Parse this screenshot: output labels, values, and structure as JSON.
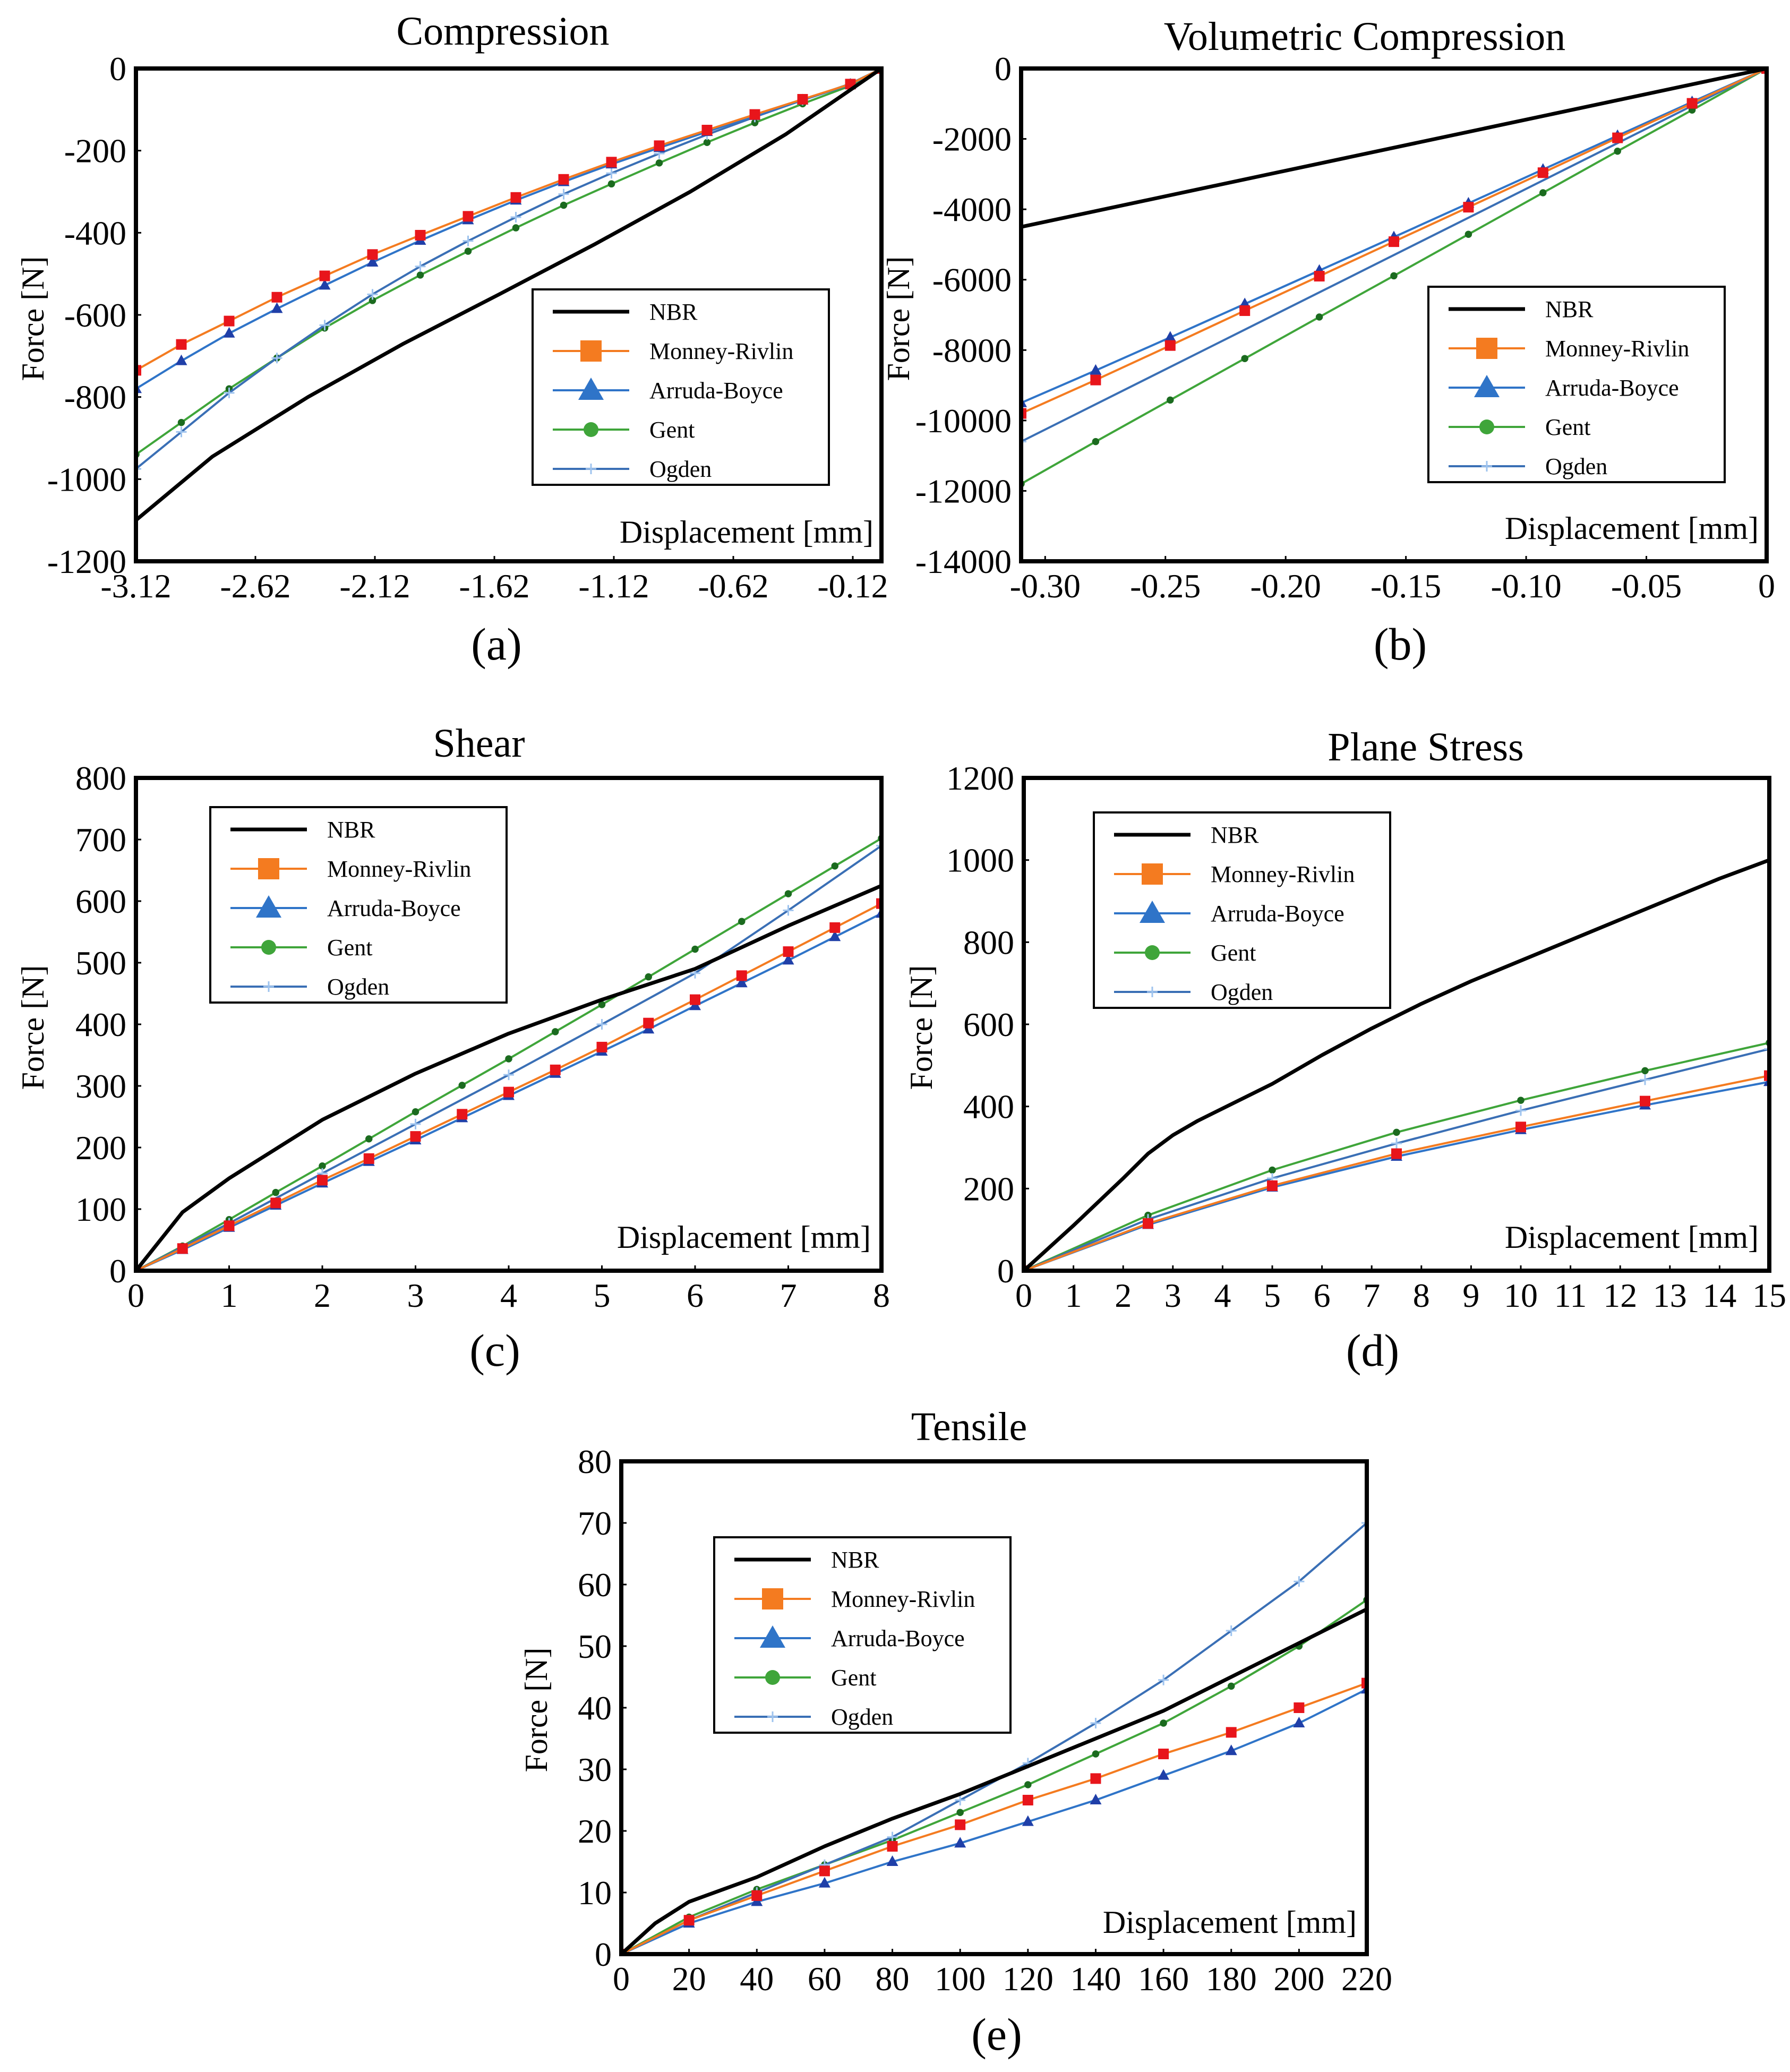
{
  "colors": {
    "NBR": "#000000",
    "Monney-Rivlin": "#f47b20",
    "Monney-Rivlin-marker": "#e8151b",
    "Arruda-Boyce": "#2f74c8",
    "Arruda-Boyce-marker": "#1f3fa8",
    "Gent": "#3fa53a",
    "Gent-marker": "#1b6b1f",
    "Ogden": "#3a6fb5"
  },
  "chart_data": [
    {
      "id": "a",
      "type": "line",
      "title": "Compression",
      "panel_label": "(a)",
      "xlabel": "Displacement [mm]",
      "ylabel": "Force [N]",
      "xlim": [
        -3.12,
        0
      ],
      "ylim": [
        -1200,
        0
      ],
      "xticks": [
        -3.12,
        -2.62,
        -2.12,
        -1.62,
        -1.12,
        -0.62,
        -0.12
      ],
      "xtick_labels": [
        "-3.12",
        "-2.62",
        "-2.12",
        "-1.62",
        "-1.12",
        "-0.62",
        "-0.12"
      ],
      "yticks": [
        0,
        -200,
        -400,
        -600,
        -800,
        -1000,
        -1200
      ],
      "ytick_labels": [
        "0",
        "-200",
        "-400",
        "-600",
        "-800",
        "-1000",
        "-1200"
      ],
      "grid": false,
      "legend": [
        "NBR",
        "Monney-Rivlin",
        "Arruda-Boyce",
        "Gent",
        "Ogden"
      ],
      "series": [
        {
          "name": "NBR",
          "x": [
            -3.12,
            -2.8,
            -2.4,
            -2.0,
            -1.6,
            -1.2,
            -0.8,
            -0.4,
            0
          ],
          "y": [
            -1100,
            -945,
            -800,
            -670,
            -550,
            -428,
            -300,
            -160,
            0
          ]
        },
        {
          "name": "Monney-Rivlin",
          "x": [
            -3.12,
            -2.93,
            -2.73,
            -2.53,
            -2.33,
            -2.13,
            -1.93,
            -1.73,
            -1.53,
            -1.33,
            -1.13,
            -0.93,
            -0.73,
            -0.53,
            -0.33,
            -0.13,
            0
          ],
          "y": [
            -735,
            -672,
            -615,
            -557,
            -505,
            -453,
            -406,
            -360,
            -314,
            -270,
            -228,
            -188,
            -150,
            -112,
            -75,
            -38,
            0
          ]
        },
        {
          "name": "Arruda-Boyce",
          "x": [
            -3.12,
            -2.93,
            -2.73,
            -2.53,
            -2.33,
            -2.13,
            -1.93,
            -1.73,
            -1.53,
            -1.33,
            -1.13,
            -0.93,
            -0.73,
            -0.53,
            -0.33,
            -0.13,
            0
          ],
          "y": [
            -780,
            -712,
            -645,
            -585,
            -528,
            -472,
            -419,
            -369,
            -321,
            -276,
            -233,
            -193,
            -154,
            -115,
            -77,
            -39,
            0
          ]
        },
        {
          "name": "Gent",
          "x": [
            -3.12,
            -2.93,
            -2.73,
            -2.53,
            -2.33,
            -2.13,
            -1.93,
            -1.73,
            -1.53,
            -1.33,
            -1.13,
            -0.93,
            -0.73,
            -0.53,
            -0.33,
            -0.13,
            0
          ],
          "y": [
            -940,
            -862,
            -780,
            -705,
            -632,
            -565,
            -503,
            -445,
            -388,
            -333,
            -281,
            -230,
            -180,
            -132,
            -86,
            -42,
            0
          ]
        },
        {
          "name": "Ogden",
          "x": [
            -3.12,
            -2.93,
            -2.73,
            -2.53,
            -2.33,
            -2.13,
            -1.93,
            -1.73,
            -1.53,
            -1.33,
            -1.13,
            -0.93,
            -0.73,
            -0.53,
            -0.33,
            -0.13,
            0
          ],
          "y": [
            -975,
            -885,
            -790,
            -705,
            -625,
            -550,
            -482,
            -420,
            -362,
            -306,
            -255,
            -207,
            -161,
            -118,
            -77,
            -37,
            0
          ]
        }
      ]
    },
    {
      "id": "b",
      "type": "line",
      "title": "Volumetric Compression",
      "panel_label": "(b)",
      "xlabel": "Displacement [mm]",
      "ylabel": "Force [N]",
      "xlim": [
        -0.31,
        0
      ],
      "ylim": [
        -14000,
        0
      ],
      "xticks": [
        -0.3,
        -0.25,
        -0.2,
        -0.15,
        -0.1,
        -0.05,
        0
      ],
      "xtick_labels": [
        "-0.30",
        "-0.25",
        "-0.20",
        "-0.15",
        "-0.10",
        "-0.05",
        "0"
      ],
      "yticks": [
        0,
        -2000,
        -4000,
        -6000,
        -8000,
        -10000,
        -12000,
        -14000
      ],
      "ytick_labels": [
        "0",
        "-2000",
        "-4000",
        "-6000",
        "-8000",
        "-10000",
        "-12000",
        "-14000"
      ],
      "grid": false,
      "legend": [
        "NBR",
        "Monney-Rivlin",
        "Arruda-Boyce",
        "Gent",
        "Ogden"
      ],
      "series": [
        {
          "name": "NBR",
          "x": [
            -0.31,
            0
          ],
          "y": [
            -4500,
            0
          ]
        },
        {
          "name": "Monney-Rivlin",
          "x": [
            -0.31,
            -0.279,
            -0.248,
            -0.217,
            -0.186,
            -0.155,
            -0.124,
            -0.093,
            -0.062,
            -0.031,
            0
          ],
          "y": [
            -9800,
            -8850,
            -7870,
            -6880,
            -5900,
            -4920,
            -3940,
            -2960,
            -1970,
            -990,
            0
          ]
        },
        {
          "name": "Arruda-Boyce",
          "x": [
            -0.31,
            -0.279,
            -0.248,
            -0.217,
            -0.186,
            -0.155,
            -0.124,
            -0.093,
            -0.062,
            -0.031,
            0
          ],
          "y": [
            -9500,
            -8580,
            -7640,
            -6690,
            -5740,
            -4790,
            -3830,
            -2870,
            -1910,
            -950,
            0
          ]
        },
        {
          "name": "Gent",
          "x": [
            -0.31,
            -0.279,
            -0.248,
            -0.217,
            -0.186,
            -0.155,
            -0.124,
            -0.093,
            -0.062,
            -0.031,
            0
          ],
          "y": [
            -11800,
            -10600,
            -9420,
            -8240,
            -7060,
            -5890,
            -4710,
            -3530,
            -2350,
            -1180,
            0
          ]
        },
        {
          "name": "Ogden",
          "x": [
            -0.31,
            0
          ],
          "y": [
            -10600,
            0
          ]
        }
      ]
    },
    {
      "id": "c",
      "type": "line",
      "title": "Shear",
      "panel_label": "(c)",
      "xlabel": "Displacement [mm]",
      "ylabel": "Force [N]",
      "xlim": [
        0,
        8
      ],
      "ylim": [
        0,
        800
      ],
      "xticks": [
        0,
        1,
        2,
        3,
        4,
        5,
        6,
        7,
        8
      ],
      "xtick_labels": [
        "0",
        "1",
        "2",
        "3",
        "4",
        "5",
        "6",
        "7",
        "8"
      ],
      "yticks": [
        0,
        100,
        200,
        300,
        400,
        500,
        600,
        700,
        800
      ],
      "ytick_labels": [
        "0",
        "100",
        "200",
        "300",
        "400",
        "500",
        "600",
        "700",
        "800"
      ],
      "grid": false,
      "legend": [
        "NBR",
        "Monney-Rivlin",
        "Arruda-Boyce",
        "Gent",
        "Ogden"
      ],
      "series": [
        {
          "name": "NBR",
          "x": [
            0,
            0.5,
            1,
            2,
            3,
            4,
            5,
            6,
            7,
            8
          ],
          "y": [
            0,
            95,
            150,
            245,
            320,
            385,
            440,
            490,
            560,
            625
          ]
        },
        {
          "name": "Monney-Rivlin",
          "x": [
            0,
            0.5,
            1,
            1.5,
            2,
            2.5,
            3,
            3.5,
            4,
            4.5,
            5,
            5.5,
            6,
            6.5,
            7,
            7.5,
            8
          ],
          "y": [
            0,
            36,
            73,
            110,
            147,
            182,
            218,
            254,
            290,
            326,
            363,
            402,
            440,
            479,
            518,
            557,
            596
          ]
        },
        {
          "name": "Arruda-Boyce",
          "x": [
            0,
            0.5,
            1,
            1.5,
            2,
            2.5,
            3,
            3.5,
            4,
            4.5,
            5,
            5.5,
            6,
            6.5,
            7,
            7.5,
            8
          ],
          "y": [
            0,
            34,
            70,
            106,
            142,
            177,
            212,
            248,
            284,
            320,
            356,
            392,
            430,
            467,
            504,
            542,
            580
          ]
        },
        {
          "name": "Gent",
          "x": [
            0,
            0.5,
            1,
            1.5,
            2,
            2.5,
            3,
            3.5,
            4,
            4.5,
            5,
            5.5,
            6,
            6.5,
            7,
            7.5,
            8
          ],
          "y": [
            0,
            40,
            83,
            127,
            170,
            214,
            258,
            301,
            344,
            388,
            432,
            477,
            522,
            567,
            612,
            657,
            702
          ]
        },
        {
          "name": "Ogden",
          "x": [
            0,
            1,
            2,
            3,
            4,
            5,
            6,
            7,
            8
          ],
          "y": [
            0,
            77,
            158,
            238,
            318,
            400,
            483,
            585,
            690
          ]
        }
      ]
    },
    {
      "id": "d",
      "type": "line",
      "title": "Plane Stress",
      "panel_label": "(d)",
      "xlabel": "Displacement [mm]",
      "ylabel": "Force [N]",
      "xlim": [
        0,
        15
      ],
      "ylim": [
        0,
        1200
      ],
      "xticks": [
        0,
        1,
        2,
        3,
        4,
        5,
        6,
        7,
        8,
        9,
        10,
        11,
        12,
        13,
        14,
        15
      ],
      "xtick_labels": [
        "0",
        "1",
        "2",
        "3",
        "4",
        "5",
        "6",
        "7",
        "8",
        "9",
        "10",
        "11",
        "12",
        "13",
        "14",
        "15"
      ],
      "yticks": [
        0,
        200,
        400,
        600,
        800,
        1000,
        1200
      ],
      "ytick_labels": [
        "0",
        "200",
        "400",
        "600",
        "800",
        "1000",
        "1200"
      ],
      "grid": false,
      "legend": [
        "NBR",
        "Monney-Rivlin",
        "Arruda-Boyce",
        "Gent",
        "Ogden"
      ],
      "series": [
        {
          "name": "NBR",
          "x": [
            0,
            1,
            2,
            2.5,
            3,
            3.5,
            4,
            5,
            6,
            7,
            8,
            9,
            10,
            11,
            12,
            13,
            14,
            15
          ],
          "y": [
            0,
            110,
            225,
            285,
            330,
            365,
            395,
            455,
            525,
            590,
            650,
            705,
            755,
            805,
            855,
            905,
            955,
            1000
          ]
        },
        {
          "name": "Monney-Rivlin",
          "x": [
            0,
            2.5,
            5,
            7.5,
            10,
            12.5,
            15
          ],
          "y": [
            0,
            115,
            207,
            285,
            350,
            413,
            475
          ]
        },
        {
          "name": "Arruda-Boyce",
          "x": [
            0,
            2.5,
            5,
            7.5,
            10,
            12.5,
            15
          ],
          "y": [
            0,
            112,
            203,
            278,
            343,
            403,
            460
          ]
        },
        {
          "name": "Gent",
          "x": [
            0,
            2.5,
            5,
            7.5,
            10,
            12.5,
            15
          ],
          "y": [
            0,
            135,
            245,
            337,
            415,
            487,
            555
          ]
        },
        {
          "name": "Ogden",
          "x": [
            0,
            2.5,
            5,
            7.5,
            10,
            12.5,
            15
          ],
          "y": [
            0,
            125,
            225,
            310,
            390,
            465,
            540
          ]
        }
      ]
    },
    {
      "id": "e",
      "type": "line",
      "title": "Tensile",
      "panel_label": "(e)",
      "xlabel": "Displacement [mm]",
      "ylabel": "Force [N]",
      "xlim": [
        0,
        220
      ],
      "ylim": [
        0,
        80
      ],
      "xticks": [
        0,
        20,
        40,
        60,
        80,
        100,
        120,
        140,
        160,
        180,
        200,
        220
      ],
      "xtick_labels": [
        "0",
        "20",
        "40",
        "60",
        "80",
        "100",
        "120",
        "140",
        "160",
        "180",
        "200",
        "220"
      ],
      "yticks": [
        0,
        10,
        20,
        30,
        40,
        50,
        60,
        70,
        80
      ],
      "ytick_labels": [
        "0",
        "10",
        "20",
        "30",
        "40",
        "50",
        "60",
        "70",
        "80"
      ],
      "grid": false,
      "legend": [
        "NBR",
        "Monney-Rivlin",
        "Arruda-Boyce",
        "Gent",
        "Ogden"
      ],
      "series": [
        {
          "name": "NBR",
          "x": [
            0,
            10,
            20,
            25,
            30,
            40,
            60,
            80,
            100,
            120,
            140,
            160,
            180,
            200,
            220
          ],
          "y": [
            0,
            5,
            8.5,
            9.5,
            10.5,
            12.5,
            17.5,
            22,
            26,
            30.5,
            35,
            39.5,
            45,
            50.5,
            56
          ]
        },
        {
          "name": "Monney-Rivlin",
          "x": [
            0,
            20,
            40,
            60,
            80,
            100,
            120,
            140,
            160,
            180,
            200,
            220
          ],
          "y": [
            0,
            5.5,
            9.5,
            13.5,
            17.5,
            21,
            25,
            28.5,
            32.5,
            36,
            40,
            44
          ]
        },
        {
          "name": "Arruda-Boyce",
          "x": [
            0,
            20,
            40,
            60,
            80,
            100,
            120,
            140,
            160,
            180,
            200,
            220
          ],
          "y": [
            0,
            5,
            8.5,
            11.5,
            15,
            18,
            21.5,
            25,
            29,
            33,
            37.5,
            43
          ]
        },
        {
          "name": "Gent",
          "x": [
            0,
            20,
            40,
            60,
            80,
            100,
            120,
            140,
            160,
            180,
            200,
            220
          ],
          "y": [
            0,
            6,
            10.5,
            14.5,
            18.5,
            23,
            27.5,
            32.5,
            37.5,
            43.5,
            50,
            57.5
          ]
        },
        {
          "name": "Ogden",
          "x": [
            0,
            20,
            40,
            60,
            80,
            100,
            120,
            140,
            160,
            180,
            200,
            220
          ],
          "y": [
            0,
            5.5,
            10,
            14.5,
            19,
            25,
            31,
            37.5,
            44.5,
            52.5,
            60.5,
            70
          ]
        }
      ]
    }
  ]
}
